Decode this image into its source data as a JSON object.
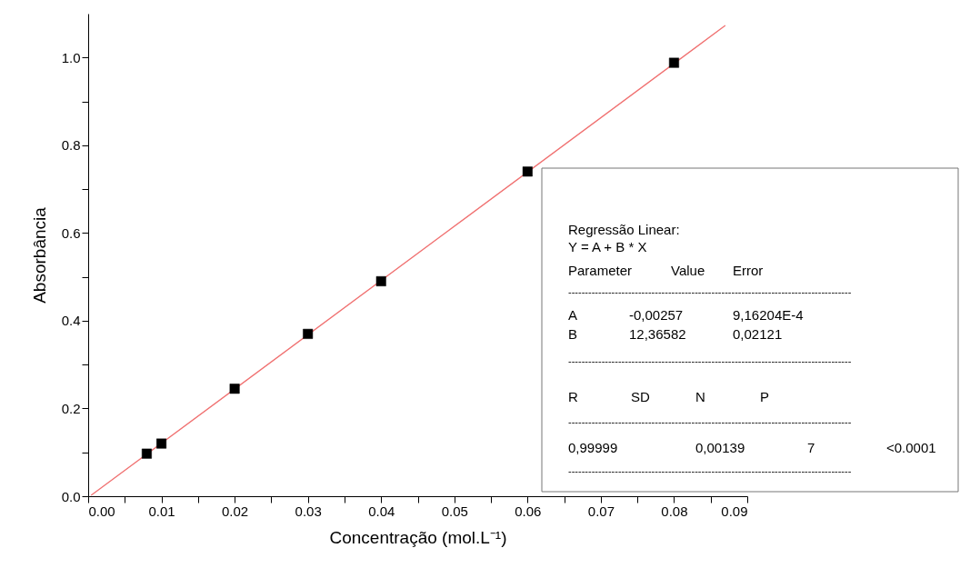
{
  "chart_data": {
    "type": "scatter",
    "xlabel": "Concentração (mol.L⁻¹)",
    "ylabel": "Absorbância",
    "xlim": [
      0,
      0.09
    ],
    "ylim": [
      0,
      1.1
    ],
    "xticks": [
      {
        "value": 0,
        "label": "0.00"
      },
      {
        "value": 0.005,
        "label": null
      },
      {
        "value": 0.01,
        "label": "0.01"
      },
      {
        "value": 0.015,
        "label": null
      },
      {
        "value": 0.02,
        "label": "0.02"
      },
      {
        "value": 0.025,
        "label": null
      },
      {
        "value": 0.03,
        "label": "0.03"
      },
      {
        "value": 0.035,
        "label": null
      },
      {
        "value": 0.04,
        "label": "0.04"
      },
      {
        "value": 0.045,
        "label": null
      },
      {
        "value": 0.05,
        "label": "0.05"
      },
      {
        "value": 0.055,
        "label": null
      },
      {
        "value": 0.06,
        "label": "0.06"
      },
      {
        "value": 0.065,
        "label": null
      },
      {
        "value": 0.07,
        "label": "0.07"
      },
      {
        "value": 0.075,
        "label": null
      },
      {
        "value": 0.08,
        "label": "0.08"
      },
      {
        "value": 0.085,
        "label": null
      },
      {
        "value": 0.09,
        "label": "0.09"
      }
    ],
    "yticks": [
      {
        "value": 0,
        "label": "0.0"
      },
      {
        "value": 0.1,
        "label": null
      },
      {
        "value": 0.2,
        "label": "0.2"
      },
      {
        "value": 0.3,
        "label": null
      },
      {
        "value": 0.4,
        "label": "0.4"
      },
      {
        "value": 0.5,
        "label": null
      },
      {
        "value": 0.6,
        "label": "0.6"
      },
      {
        "value": 0.7,
        "label": null
      },
      {
        "value": 0.8,
        "label": "0.8"
      },
      {
        "value": 0.9,
        "label": null
      },
      {
        "value": 1.0,
        "label": "1.0"
      }
    ],
    "grid": false,
    "series": [
      {
        "type": "line",
        "color": "#f07070",
        "line_style": "solid",
        "x": [
          0.0004,
          0.087
        ],
        "values": [
          0.002,
          1.073
        ]
      },
      {
        "type": "scatter",
        "color": "#000000",
        "marker": "square",
        "x": [
          0.008,
          0.01,
          0.02,
          0.03,
          0.04,
          0.06,
          0.08
        ],
        "values": [
          0.097,
          0.12,
          0.245,
          0.37,
          0.49,
          0.74,
          0.988
        ]
      }
    ],
    "annotations": [
      "Regressão Linear:",
      "Y = A + B * X",
      "Parameter",
      "Value",
      "Error",
      "-------------------------------------------------------------------------------------",
      "A",
      "-0,00257",
      "9,16204E-4",
      "B",
      "12,36582",
      "0,02121",
      "-------------------------------------------------------------------------------------",
      "R",
      "SD",
      "N",
      "P",
      "-------------------------------------------------------------------------------------",
      "0,99999",
      "0,00139",
      "7",
      "<0.0001",
      "-------------------------------------------------------------------------------------"
    ]
  }
}
